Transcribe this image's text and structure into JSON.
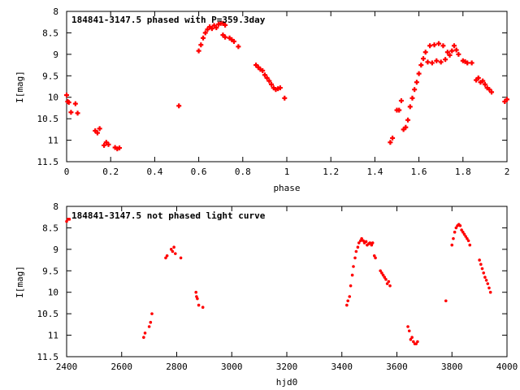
{
  "chart_data": [
    {
      "type": "scatter",
      "title": "184841-3147.5 phased with P=359.3day",
      "xlabel": "phase",
      "ylabel": "I[mag]",
      "xlim": [
        0,
        2
      ],
      "ylim": [
        11.5,
        8
      ],
      "y_inverted": true,
      "xticks": [
        "0",
        "0.2",
        "0.4",
        "0.6",
        "0.8",
        "1",
        "1.2",
        "1.4",
        "1.6",
        "1.8",
        "2"
      ],
      "yticks": [
        "8",
        "8.5",
        "9",
        "9.5",
        "10",
        "10.5",
        "11",
        "11.5"
      ],
      "marker": "plus",
      "color": "#ff0000",
      "legend": "none",
      "grid": false,
      "series": [
        {
          "x": [
            0.0,
            0.005,
            0.01,
            0.02,
            0.04,
            0.05,
            0.13,
            0.14,
            0.15,
            0.17,
            0.18,
            0.19,
            0.22,
            0.23,
            0.24,
            0.51,
            0.6,
            0.61,
            0.62,
            0.63,
            0.64,
            0.65,
            0.66,
            0.67,
            0.68,
            0.69,
            0.7,
            0.71,
            0.71,
            0.72,
            0.72,
            0.74,
            0.75,
            0.76,
            0.78,
            0.86,
            0.87,
            0.88,
            0.89,
            0.9,
            0.91,
            0.92,
            0.93,
            0.94,
            0.95,
            0.96,
            0.97,
            0.99,
            1.47,
            1.48,
            1.5,
            1.51,
            1.52,
            1.53,
            1.54,
            1.55,
            1.56,
            1.57,
            1.58,
            1.59,
            1.6,
            1.61,
            1.62,
            1.63,
            1.64,
            1.65,
            1.66,
            1.67,
            1.68,
            1.69,
            1.7,
            1.71,
            1.72,
            1.73,
            1.74,
            1.75,
            1.76,
            1.77,
            1.78,
            1.8,
            1.81,
            1.82,
            1.84,
            1.86,
            1.87,
            1.88,
            1.89,
            1.9,
            1.91,
            1.92,
            1.93,
            1.99,
            2.0
          ],
          "y": [
            9.95,
            10.1,
            10.12,
            10.35,
            10.15,
            10.37,
            10.78,
            10.83,
            10.73,
            11.12,
            11.05,
            11.1,
            11.17,
            11.2,
            11.18,
            10.2,
            8.92,
            8.78,
            8.62,
            8.5,
            8.42,
            8.36,
            8.4,
            8.33,
            8.38,
            8.3,
            8.28,
            8.28,
            8.55,
            8.32,
            8.6,
            8.62,
            8.66,
            8.7,
            8.82,
            9.25,
            9.3,
            9.35,
            9.38,
            9.48,
            9.55,
            9.62,
            9.7,
            9.78,
            9.82,
            9.8,
            9.78,
            10.02,
            11.05,
            10.95,
            10.3,
            10.3,
            10.08,
            10.75,
            10.7,
            10.53,
            10.22,
            10.02,
            9.82,
            9.65,
            9.45,
            9.25,
            9.1,
            8.95,
            9.18,
            8.8,
            9.2,
            8.78,
            9.15,
            8.75,
            9.18,
            8.8,
            9.12,
            8.95,
            9.02,
            8.92,
            8.8,
            8.9,
            9.0,
            9.15,
            9.17,
            9.2,
            9.2,
            9.6,
            9.55,
            9.65,
            9.62,
            9.7,
            9.78,
            9.82,
            9.88,
            10.1,
            10.05
          ]
        }
      ]
    },
    {
      "type": "scatter",
      "title": "184841-3147.5 not phased light curve",
      "xlabel": "hjd0",
      "ylabel": "I[mag]",
      "xlim": [
        2400,
        4000
      ],
      "ylim": [
        11.5,
        8
      ],
      "y_inverted": true,
      "xticks": [
        "2400",
        "2600",
        "2800",
        "3000",
        "3200",
        "3400",
        "3600",
        "3800",
        "4000"
      ],
      "yticks": [
        "8",
        "8.5",
        "9",
        "9.5",
        "10",
        "10.5",
        "11",
        "11.5"
      ],
      "marker": "dot",
      "color": "#ff0000",
      "legend": "none",
      "grid": false,
      "series": [
        {
          "x": [
            2400,
            2405,
            2410,
            2680,
            2685,
            2700,
            2705,
            2710,
            2760,
            2765,
            2780,
            2785,
            2790,
            2795,
            2815,
            2870,
            2872,
            2875,
            2880,
            2895,
            3418,
            3422,
            3428,
            3432,
            3438,
            3442,
            3448,
            3452,
            3458,
            3462,
            3468,
            3472,
            3478,
            3482,
            3488,
            3492,
            3498,
            3502,
            3508,
            3512,
            3518,
            3522,
            3540,
            3545,
            3550,
            3555,
            3560,
            3565,
            3570,
            3575,
            3640,
            3645,
            3650,
            3655,
            3660,
            3665,
            3670,
            3675,
            3778,
            3800,
            3805,
            3810,
            3815,
            3820,
            3825,
            3830,
            3835,
            3840,
            3845,
            3850,
            3855,
            3860,
            3865,
            3900,
            3905,
            3910,
            3915,
            3920,
            3925,
            3930,
            3935,
            3940
          ],
          "y": [
            8.35,
            8.3,
            8.3,
            11.05,
            10.95,
            10.8,
            10.7,
            10.5,
            9.2,
            9.15,
            9.0,
            9.05,
            8.95,
            9.1,
            9.2,
            10.0,
            10.1,
            10.15,
            10.3,
            10.35,
            10.3,
            10.2,
            10.1,
            9.85,
            9.6,
            9.4,
            9.2,
            9.05,
            8.95,
            8.85,
            8.8,
            8.75,
            8.8,
            8.85,
            8.82,
            8.9,
            8.87,
            8.85,
            8.9,
            8.85,
            9.15,
            9.2,
            9.5,
            9.55,
            9.6,
            9.65,
            9.7,
            9.8,
            9.75,
            9.85,
            10.8,
            10.9,
            11.1,
            11.05,
            11.15,
            11.2,
            11.2,
            11.15,
            10.2,
            8.9,
            8.75,
            8.6,
            8.5,
            8.45,
            8.42,
            8.45,
            8.55,
            8.6,
            8.65,
            8.7,
            8.75,
            8.8,
            8.9,
            9.25,
            9.35,
            9.45,
            9.55,
            9.65,
            9.72,
            9.8,
            9.9,
            10.0
          ]
        }
      ]
    }
  ]
}
